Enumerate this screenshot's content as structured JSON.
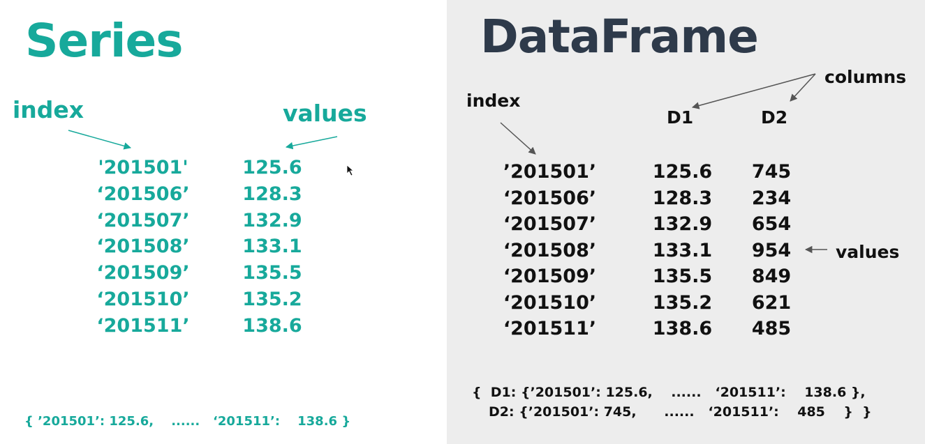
{
  "series": {
    "title": "Series",
    "index_label": "index",
    "values_label": "values",
    "index": [
      "'201501'",
      "‘201506’",
      "‘201507’",
      "‘201508’",
      "‘201509’",
      "‘201510’",
      "‘201511’"
    ],
    "values": [
      "125.6",
      "128.3",
      "132.9",
      "133.1",
      "135.5",
      "135.2",
      "138.6"
    ],
    "dict_text": "{ ’201501’: 125.6,    ......   ‘201511’:    138.6 }"
  },
  "dataframe": {
    "title": "DataFrame",
    "columns_label": "columns",
    "index_label": "index",
    "values_label": "values",
    "column_headers": [
      "D1",
      "D2"
    ],
    "index": [
      "’201501’",
      "‘201506’",
      "‘201507’",
      "‘201508’",
      "‘201509’",
      "‘201510’",
      "‘201511’"
    ],
    "d1_values": [
      "125.6",
      "128.3",
      "132.9",
      "133.1",
      "135.5",
      "135.2",
      "138.6"
    ],
    "d2_values": [
      "745",
      "234",
      "654",
      "954",
      "849",
      "621",
      "485"
    ],
    "dict_line1": "{  D1: {’201501’: 125.6,    ......   ‘201511’:    138.6 },",
    "dict_line2": "D2: {’201501’: 745,      ......   ‘201511’:    485    }  }"
  },
  "colors": {
    "series_text": "#17a99b",
    "dataframe_title": "#2e3a4a",
    "left_background": "#ffffff",
    "right_background": "#ededed"
  }
}
